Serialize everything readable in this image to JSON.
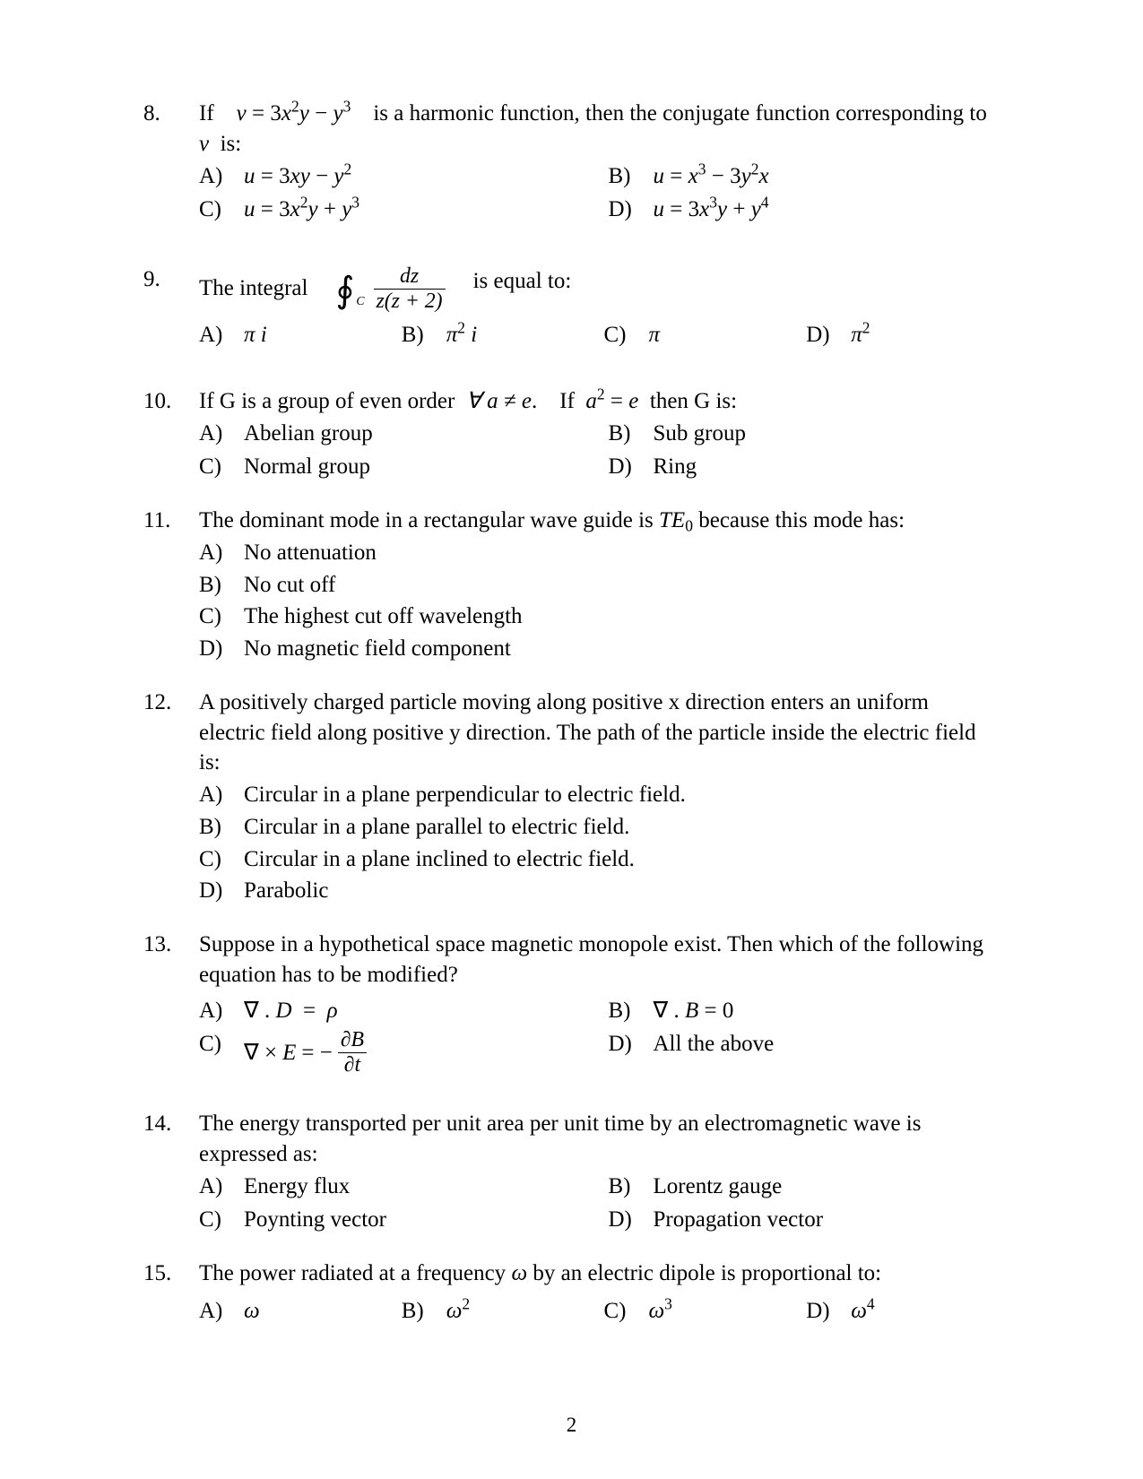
{
  "page_number": "2",
  "questions": [
    {
      "num": "8.",
      "stem_html": "If <span class='it'>v</span> = 3<span class='it'>x</span><sup>2</sup><span class='it'>y</span> − <span class='it'>y</span><sup>3</sup> is a harmonic function, then the conjugate function corresponding to <span class='it'>v</span> is:",
      "layout": "grid2",
      "options": [
        {
          "letter": "A)",
          "html": "<span class='indent'></span><span class='it'>u</span> = 3<span class='it'>xy</span> − <span class='it'>y</span><sup>2</sup>"
        },
        {
          "letter": "B)",
          "html": "<span class='indent'></span><span class='it'>u</span> = <span class='it'>x</span><sup>3</sup> − 3<span class='it'>y</span><sup>2</sup><span class='it'>x</span>"
        },
        {
          "letter": "C)",
          "html": "<span class='indent'></span><span class='it'>u</span> = 3<span class='it'>x</span><sup>2</sup><span class='it'>y</span> + <span class='it'>y</span><sup>3</sup>"
        },
        {
          "letter": "D)",
          "html": "<span class='indent'></span><span class='it'>u</span> = 3<span class='it'>x</span><sup>3</sup><span class='it'>y</span> + <span class='it'>y</span><sup>4</sup>"
        }
      ],
      "extra_gap_after": 18
    },
    {
      "num": "9.",
      "stem_html": "<span class='row'>The integral <span class='oint'>∮</span><span class='intsub'>C</span><span class='frac'><span class='num'>dz</span><span class='den'>z(z + 2)</span></span><span class='mraise'> is equal to:</span></span>",
      "layout": "grid4",
      "options": [
        {
          "letter": "A)",
          "html": "<span class='indent'></span><span class='it'>π i</span>"
        },
        {
          "letter": "B)",
          "html": "<span class='indent'></span><span class='it'>π</span><sup>2</sup> <span class='it'>i</span>"
        },
        {
          "letter": "C)",
          "html": "<span class='indent'></span><span class='it'>π</span>"
        },
        {
          "letter": "D)",
          "html": "<span class='indent'></span><span class='it'>π</span><sup>2</sup>"
        }
      ],
      "extra_gap_before": 8,
      "extra_gap_after": 14
    },
    {
      "num": "10.",
      "stem_html": "If G is a group of even order <span class='it'>∀ a ≠ e</span>. If <span class='it'>a</span><sup>2</sup> = <span class='it'>e</span> then G is:",
      "layout": "grid2",
      "options": [
        {
          "letter": "A)",
          "html": "Abelian group"
        },
        {
          "letter": "B)",
          "html": "Sub group"
        },
        {
          "letter": "C)",
          "html": "Normal group"
        },
        {
          "letter": "D)",
          "html": "Ring"
        }
      ]
    },
    {
      "num": "11.",
      "stem_html": "The dominant mode in a rectangular wave guide is <span class='it'>TE</span><sub>0</sub> because this mode has:",
      "layout": "col",
      "options": [
        {
          "letter": "A)",
          "html": "No attenuation"
        },
        {
          "letter": "B)",
          "html": "No cut off"
        },
        {
          "letter": "C)",
          "html": "The highest cut off wavelength"
        },
        {
          "letter": "D)",
          "html": "No magnetic field component"
        }
      ]
    },
    {
      "num": "12.",
      "stem_html": "A positively charged particle moving along positive x direction enters an uniform electric field along positive y direction. The path of the particle inside the electric field is:",
      "layout": "col",
      "options": [
        {
          "letter": "A)",
          "html": "Circular in a plane perpendicular to electric field."
        },
        {
          "letter": "B)",
          "html": "Circular in a plane parallel to electric field."
        },
        {
          "letter": "C)",
          "html": "Circular in a plane inclined to electric field."
        },
        {
          "letter": "D)",
          "html": "Parabolic"
        }
      ]
    },
    {
      "num": "13.",
      "stem_html": "Suppose in a hypothetical space magnetic monopole exist. Then which of the following equation has to be modified?",
      "layout": "grid2",
      "options": [
        {
          "letter": "A)",
          "html": "<span class='indent'></span>∇ . <span class='it'>D</span> = <span class='it'>ρ</span>"
        },
        {
          "letter": "B)",
          "html": "<span class='indent'></span>∇ . <span class='it'>B</span> = 0"
        },
        {
          "letter": "C)",
          "html": "<span class='indent'></span><span class='row'>∇ × <span class='it'>E</span> = −<span class='frac'><span class='num'>∂B</span><span class='den'>∂t</span></span></span>"
        },
        {
          "letter": "D)",
          "html": "<span class='indent'></span>All the above"
        }
      ],
      "extra_gap_before": 6,
      "extra_gap_after": 10
    },
    {
      "num": "14.",
      "stem_html": "The energy transported per unit area per unit time by an electromagnetic wave is expressed as:",
      "layout": "grid2",
      "options": [
        {
          "letter": "A)",
          "html": "Energy flux"
        },
        {
          "letter": "B)",
          "html": "Lorentz gauge"
        },
        {
          "letter": "C)",
          "html": "Poynting vector"
        },
        {
          "letter": "D)",
          "html": "Propagation vector"
        }
      ]
    },
    {
      "num": "15.",
      "stem_html": "The power radiated at a frequency <span class='it'>ω</span> by an electric dipole is proportional to:",
      "layout": "grid4",
      "options": [
        {
          "letter": "A)",
          "html": "<span class='indent'></span><span class='it'>ω</span>"
        },
        {
          "letter": "B)",
          "html": "<span class='indent'></span><span class='it'>ω</span><sup>2</sup>"
        },
        {
          "letter": "C)",
          "html": "<span class='indent'></span><span class='it'>ω</span><sup>3</sup>"
        },
        {
          "letter": "D)",
          "html": "<span class='indent'></span><span class='it'>ω</span><sup>4</sup>"
        }
      ],
      "extra_gap_before": 8
    }
  ]
}
